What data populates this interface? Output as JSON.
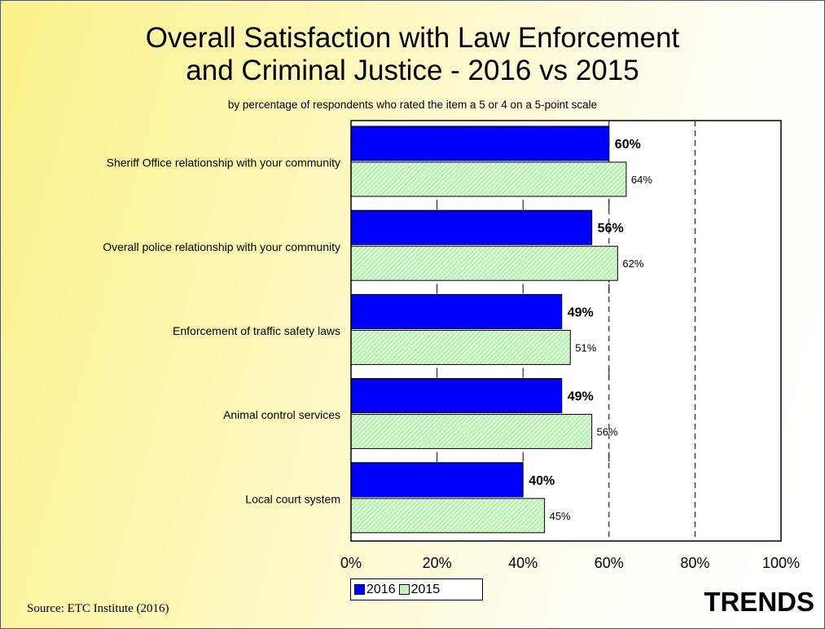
{
  "chart_data": {
    "type": "bar",
    "orientation": "horizontal",
    "title": [
      "Overall Satisfaction with Law Enforcement",
      "and Criminal Justice - 2016 vs 2015"
    ],
    "subtitle": "by percentage of respondents who rated the item a 5 or 4 on a 5-point scale",
    "categories": [
      "Sheriff Office relationship with your community",
      "Overall police relationship with your community",
      "Enforcement of traffic safety laws",
      "Animal control services",
      "Local court system"
    ],
    "series": [
      {
        "name": "2016",
        "values": [
          60,
          56,
          49,
          49,
          40
        ],
        "labels": [
          "60%",
          "56%",
          "49%",
          "49%",
          "40%"
        ],
        "color": "#0000ff"
      },
      {
        "name": "2015",
        "values": [
          64,
          62,
          51,
          56,
          45
        ],
        "labels": [
          "64%",
          "62%",
          "51%",
          "56%",
          "45%"
        ],
        "color": "#c8f2c4"
      }
    ],
    "xlim": [
      0,
      100
    ],
    "xticks": [
      "0%",
      "20%",
      "40%",
      "60%",
      "80%",
      "100%"
    ],
    "gridlines": "dashed at 60% and 80%",
    "legend": "bottom"
  },
  "footer": {
    "source": "Source:  ETC Institute (2016)",
    "badge": "TRENDS"
  }
}
